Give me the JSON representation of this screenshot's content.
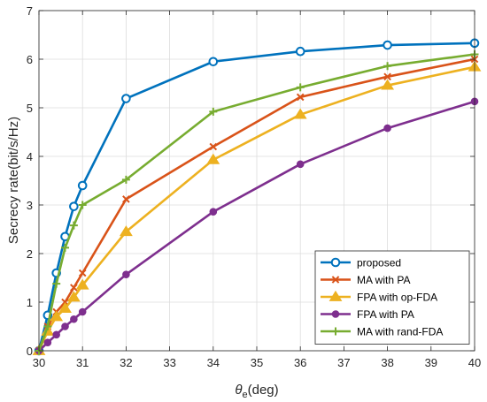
{
  "chart_data": {
    "type": "line",
    "xlabel": "θe(deg)",
    "xlabel_symbol": "θ",
    "xlabel_sub": "e",
    "xlabel_unit": "(deg)",
    "ylabel": "Secrecy rate(bit/s/Hz)",
    "xlim": [
      30,
      40
    ],
    "ylim": [
      0,
      7
    ],
    "xticks": [
      "30",
      "31",
      "32",
      "33",
      "34",
      "35",
      "36",
      "37",
      "38",
      "39",
      "40"
    ],
    "yticks": [
      "0",
      "1",
      "2",
      "3",
      "4",
      "5",
      "6",
      "7"
    ],
    "grid": true,
    "legend_position": "bottom-right",
    "x": [
      30,
      30.2,
      30.4,
      30.6,
      30.8,
      31,
      32,
      34,
      36,
      38,
      40
    ],
    "series": [
      {
        "name": "proposed",
        "color": "#0072BD",
        "marker": "circle-open",
        "values": [
          0.0,
          0.73,
          1.6,
          2.35,
          2.97,
          3.4,
          5.19,
          5.95,
          6.16,
          6.29,
          6.33
        ]
      },
      {
        "name": "MA with PA",
        "color": "#D95319",
        "marker": "x",
        "values": [
          0.0,
          0.5,
          0.8,
          1.0,
          1.3,
          1.6,
          3.12,
          4.2,
          5.22,
          5.64,
          6.0
        ]
      },
      {
        "name": "FPA with op-FDA",
        "color": "#EDB120",
        "marker": "triangle",
        "values": [
          0.0,
          0.4,
          0.7,
          0.87,
          1.1,
          1.35,
          2.45,
          3.93,
          4.86,
          5.46,
          5.84
        ]
      },
      {
        "name": "FPA with PA",
        "color": "#7E2F8E",
        "marker": "circle-filled",
        "values": [
          0.0,
          0.17,
          0.33,
          0.5,
          0.65,
          0.8,
          1.57,
          2.86,
          3.84,
          4.58,
          5.13
        ]
      },
      {
        "name": "MA with rand-FDA",
        "color": "#77AC30",
        "marker": "plus",
        "values": [
          0.0,
          0.5,
          1.38,
          2.12,
          2.58,
          3.0,
          3.52,
          4.92,
          5.42,
          5.86,
          6.1
        ]
      }
    ]
  }
}
